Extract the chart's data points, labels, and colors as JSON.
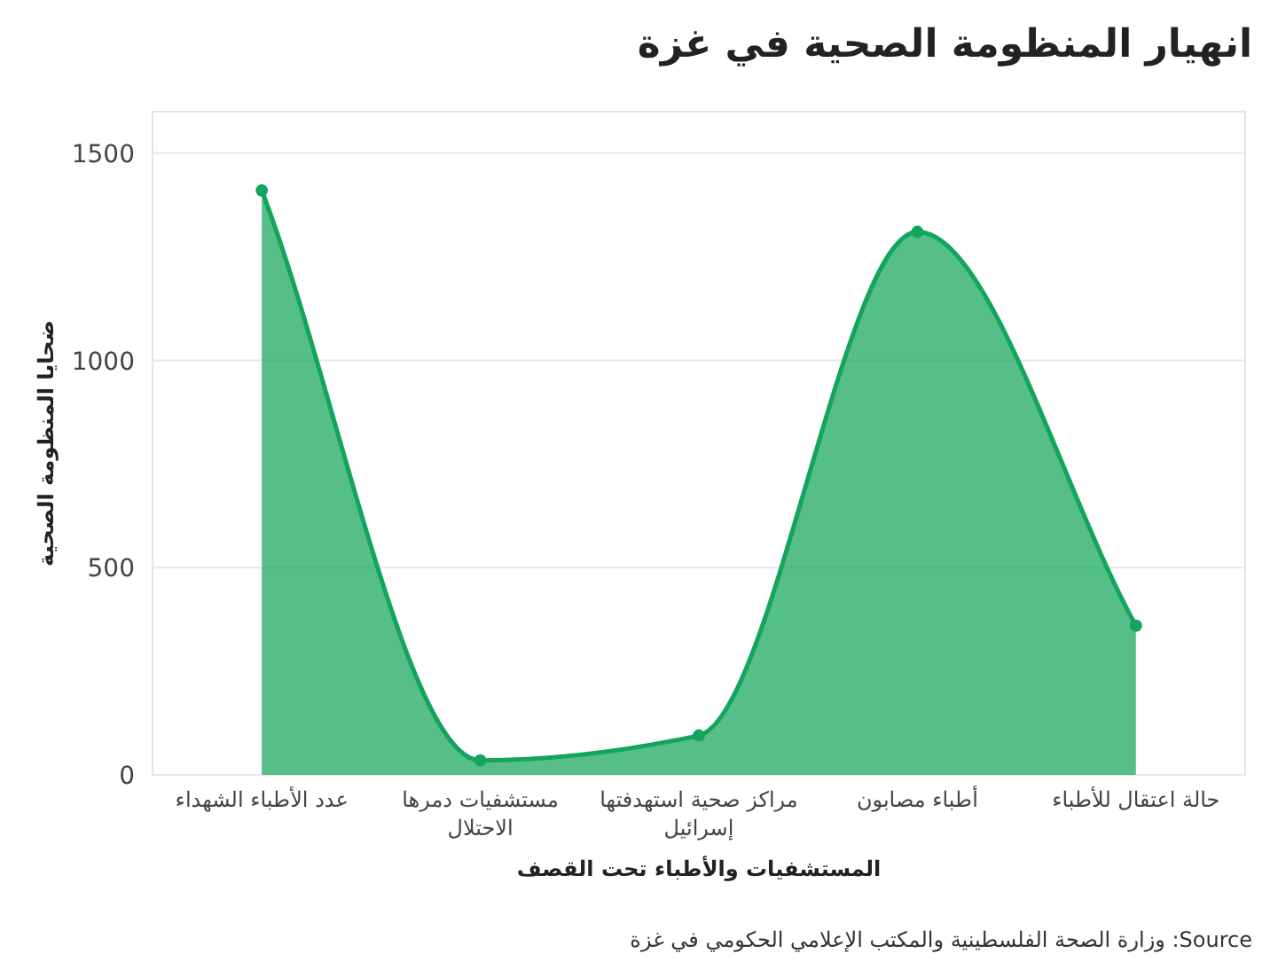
{
  "chart_data": {
    "type": "area",
    "title": "انهيار المنظومة الصحية في غزة",
    "xlabel": "المستشفيات والأطباء تحت القصف",
    "ylabel": "ضحايا المنظومة الصحية",
    "categories": [
      "عدد الأطباء الشهداء",
      "مستشفيات دمرها الاحتلال",
      "مراكز صحية استهدفتها إسرائيل",
      "أطباء مصابون",
      "حالة اعتقال للأطباء"
    ],
    "series": [
      {
        "color": "#13a55c",
        "values": [
          1410,
          35,
          95,
          1310,
          360
        ]
      }
    ],
    "ylim": [
      0,
      1600
    ],
    "yticks": [
      0,
      500,
      1000,
      1500
    ],
    "grid": "y",
    "marker": "circle",
    "annotations": [
      "Source: وزارة الصحة الفلسطينية والمكتب الإعلامي الحكومي في غزة"
    ]
  }
}
